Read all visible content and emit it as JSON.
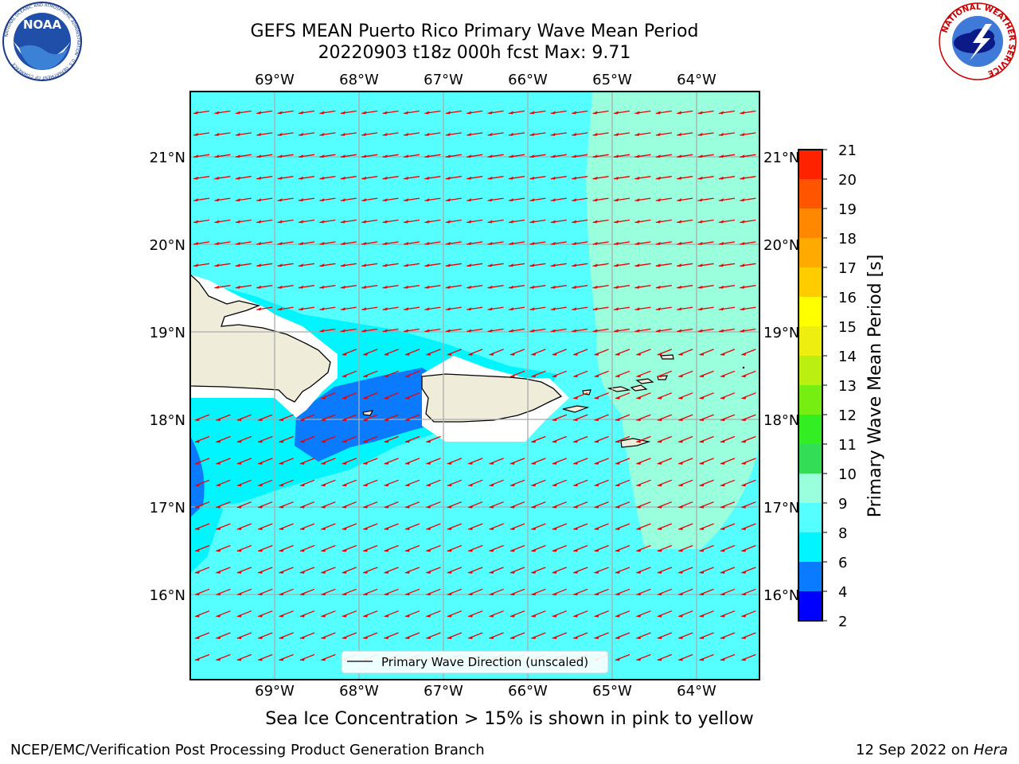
{
  "header": {
    "title": "GEFS MEAN Puerto Rico Primary Wave Mean Period",
    "subtitle": "20220903 t18z 000h fcst   Max: 9.71"
  },
  "logos": {
    "noaa": {
      "text": "NOAA",
      "ring_text": "NATIONAL OCEANIC AND ATMOSPHERIC ADMINISTRATION · U.S. DEPARTMENT OF COMMERCE"
    },
    "nws": {
      "ring_text": "NATIONAL WEATHER SERVICE"
    }
  },
  "map": {
    "lon_labels": [
      "69°W",
      "68°W",
      "67°W",
      "66°W",
      "65°W",
      "64°W"
    ],
    "lat_labels": [
      "21°N",
      "20°N",
      "19°N",
      "18°N",
      "17°N",
      "16°N"
    ],
    "legend_label": "Primary Wave Direction (unscaled)",
    "wave_direction": "toward west-southwest",
    "colors": {
      "ocean_8_9": "#55ffff",
      "ocean_9_10": "#99ffdd",
      "ocean_6_8": "#00f5ff",
      "ocean_4_6": "#0a7aff",
      "land": "#efecd9",
      "arrow": "#ee0000",
      "grid": "#aaaaaa"
    }
  },
  "colorbar": {
    "label": "Primary Wave Mean Period [s]",
    "ticks": [
      "2",
      "4",
      "6",
      "8",
      "9",
      "10",
      "11",
      "12",
      "13",
      "14",
      "15",
      "16",
      "17",
      "18",
      "19",
      "20",
      "21"
    ],
    "colors": [
      "#0000ff",
      "#0a7aff",
      "#00f5ff",
      "#55ffff",
      "#99ffdd",
      "#33dd55",
      "#33ee22",
      "#77ee11",
      "#bbee11",
      "#eeee11",
      "#ffff00",
      "#ffcc00",
      "#ffaa00",
      "#ff8800",
      "#ff5500",
      "#ff2200",
      "#ff0000"
    ]
  },
  "chart_data": {
    "type": "heatmap",
    "title": "GEFS MEAN Puerto Rico Primary Wave Mean Period",
    "subtitle": "20220903 t18z 000h fcst   Max: 9.71",
    "max_value": 9.71,
    "units": "s",
    "lon_range": [
      -70.0,
      -63.3
    ],
    "lat_range": [
      15.0,
      21.75
    ],
    "colorbar_levels": [
      2,
      4,
      6,
      8,
      9,
      10,
      11,
      12,
      13,
      14,
      15,
      16,
      17,
      18,
      19,
      20,
      21
    ],
    "regions": [
      {
        "name": "",
        "period_range": [
          8,
          9
        ],
        "area": "most of domain"
      },
      {
        "name": "",
        "period_range": [
          9,
          10
        ],
        "area": "east of 65.3°W"
      },
      {
        "name": "",
        "period_range": [
          6,
          8
        ],
        "area": "lee of Hispaniola and south of it"
      },
      {
        "name": "",
        "period_range": [
          4,
          6
        ],
        "area": "Mona Passage / west of Puerto Rico and 70°W near 17.5°N"
      }
    ]
  },
  "footer": {
    "note": "Sea Ice Concentration > 15% is shown in pink to yellow",
    "credit": "NCEP/EMC/Verification Post Processing Product Generation Branch",
    "date": "12 Sep 2022 on ",
    "machine": "Hera"
  }
}
